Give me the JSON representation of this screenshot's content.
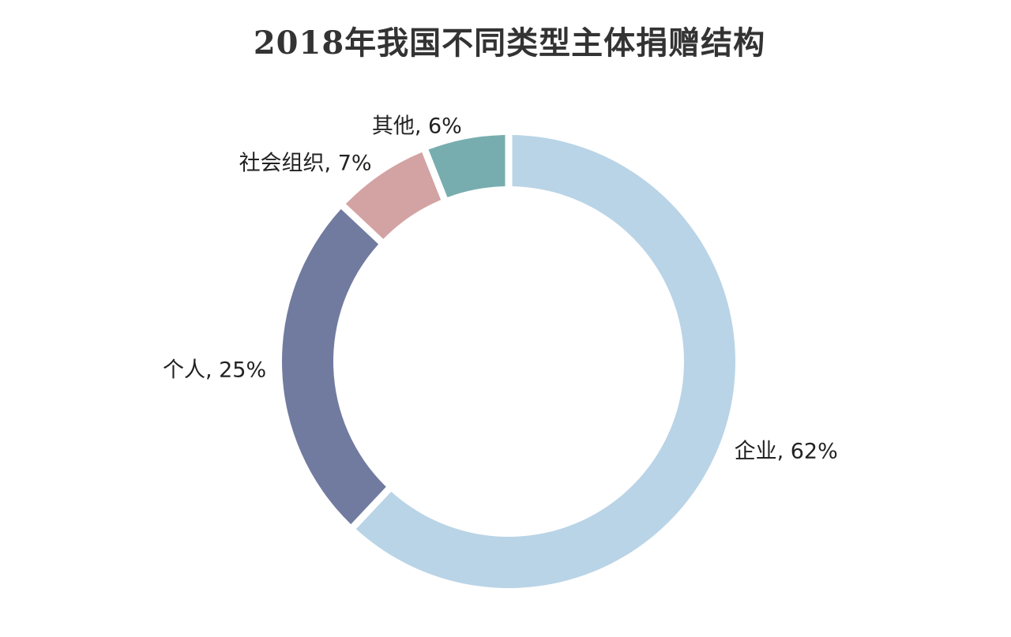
{
  "chart_data": {
    "type": "pie",
    "variant": "donut",
    "title": "2018年我国不同类型主体捐赠结构",
    "unit": "%",
    "slices": [
      {
        "label": "企业",
        "value": 62,
        "color": "#b9d4e6"
      },
      {
        "label": "个人",
        "value": 25,
        "color": "#717b9f"
      },
      {
        "label": "社会组织",
        "value": 7,
        "color": "#d3a3a3"
      },
      {
        "label": "其他",
        "value": 6,
        "color": "#78adaf"
      }
    ],
    "legend": "none",
    "direction": "clockwise",
    "start": "top"
  }
}
